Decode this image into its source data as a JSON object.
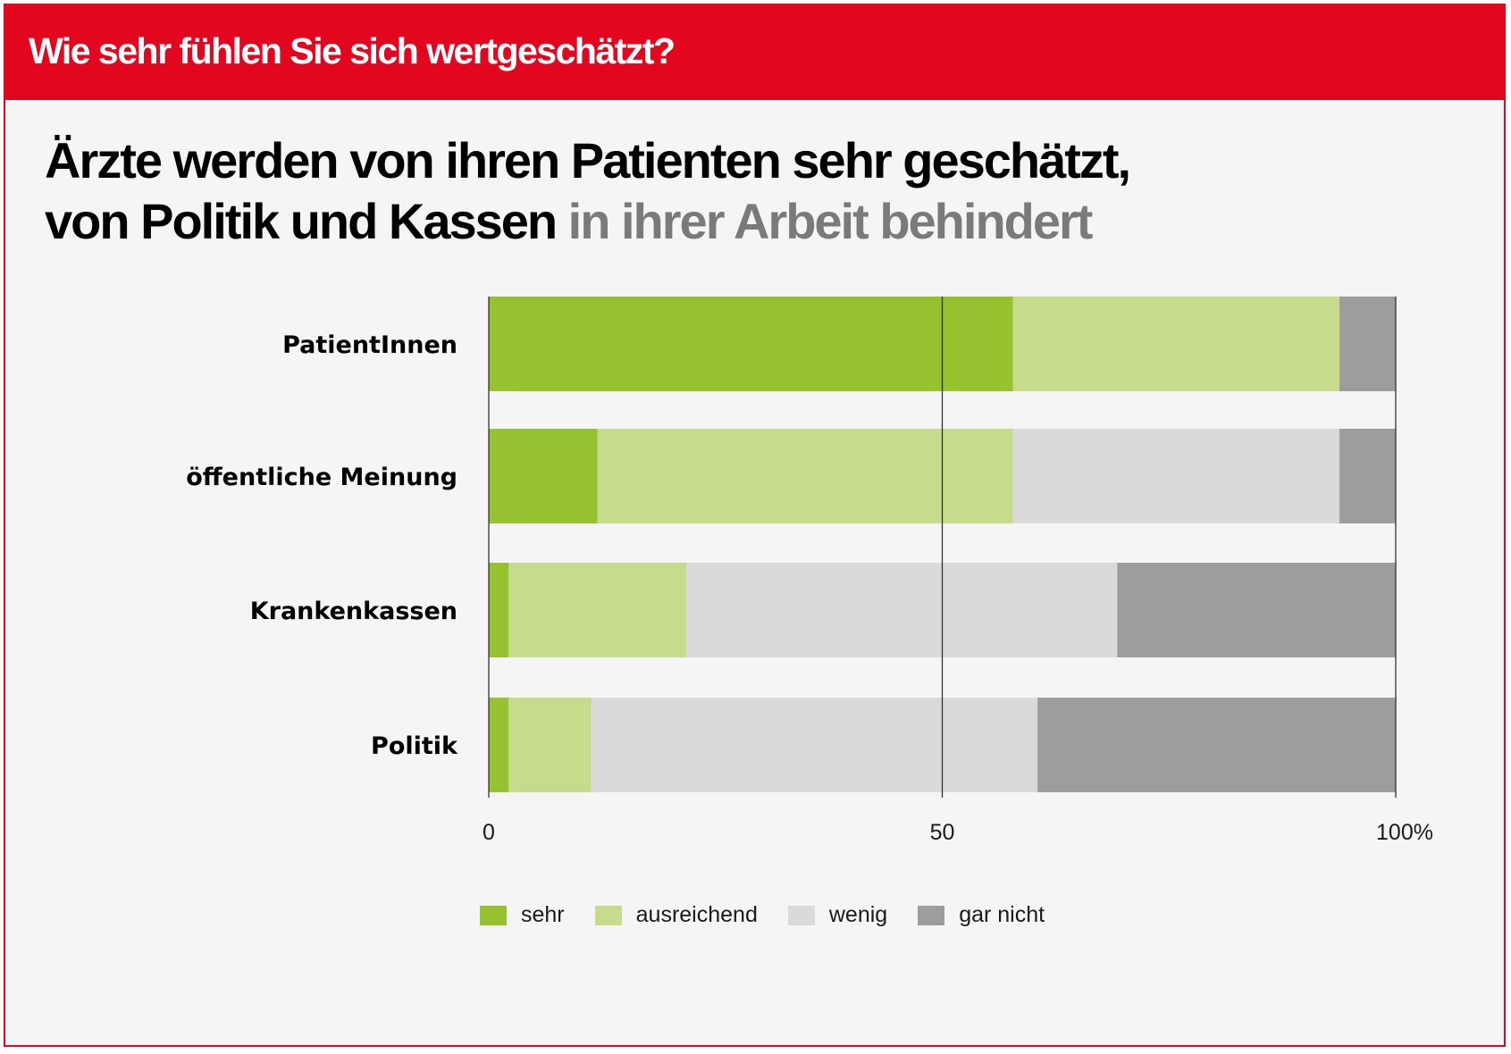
{
  "header": {
    "banner_title": "Wie sehr fühlen Sie sich wertgeschätzt?",
    "headline_line1": "Ärzte werden von ihren Patienten sehr geschätzt,",
    "headline_line2_dark": "von Politik und Kassen",
    "headline_line2_grey": "in ihrer Arbeit behindert"
  },
  "colors": {
    "banner_red": "#e2071f",
    "sehr": "#97c22f",
    "ausreichend": "#c6db8c",
    "wenig": "#dadada",
    "gar_nicht": "#9d9d9d"
  },
  "chart_data": {
    "type": "bar",
    "orientation": "horizontal",
    "stacked": true,
    "categories": [
      "PatientInnen",
      "öffentliche Meinung",
      "Krankenkassen",
      "Politik"
    ],
    "series": [
      {
        "name": "sehr",
        "color": "#97c22f",
        "values": [
          57.8,
          12.0,
          2.2,
          2.2
        ]
      },
      {
        "name": "ausreichend",
        "color": "#c6db8c",
        "values": [
          36.0,
          45.8,
          19.6,
          9.1
        ]
      },
      {
        "name": "wenig",
        "color": "#dadada",
        "values": [
          0,
          36.0,
          47.5,
          49.2
        ]
      },
      {
        "name": "gar nicht",
        "color": "#9d9d9d",
        "values": [
          6.2,
          6.2,
          30.7,
          39.5
        ]
      }
    ],
    "xlim": [
      0,
      100
    ],
    "x_ticks": [
      "0",
      "50",
      "100%"
    ],
    "x_tick_values": [
      0,
      50,
      100
    ],
    "legend_position": "bottom",
    "grid": "vertical lines at 0, 50, 100"
  }
}
